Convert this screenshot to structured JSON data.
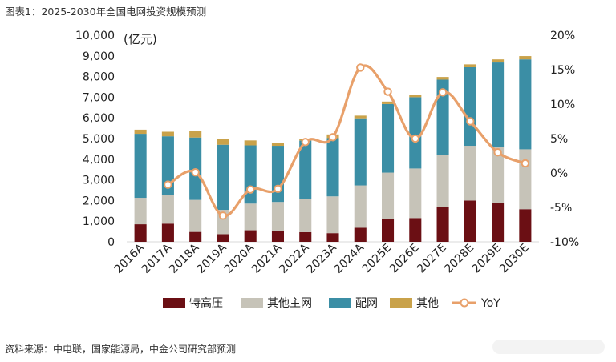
{
  "header": {
    "title": "图表1：2025-2030年全国电网投资规模预测"
  },
  "footer": {
    "source": "资料来源：中电联，国家能源局，中金公司研究部预测"
  },
  "chart_data": {
    "type": "bar",
    "stacked": true,
    "categories": [
      "2016A",
      "2017A",
      "2018A",
      "2019A",
      "2020A",
      "2021A",
      "2022A",
      "2023A",
      "2024A",
      "2025E",
      "2026E",
      "2027E",
      "2028E",
      "2029E",
      "2030E"
    ],
    "series": [
      {
        "name": "特高压",
        "color": "#6b0f14",
        "axis": "left",
        "values": [
          850,
          880,
          480,
          370,
          560,
          510,
          470,
          420,
          680,
          1100,
          1150,
          1700,
          2000,
          1880,
          1580
        ]
      },
      {
        "name": "其他主网",
        "color": "#c6c3b8",
        "axis": "left",
        "values": [
          1280,
          1380,
          1550,
          1180,
          1290,
          1420,
          1620,
          1780,
          2050,
          2250,
          2400,
          2500,
          2650,
          2700,
          2900
        ]
      },
      {
        "name": "配网",
        "color": "#3b8ea5",
        "axis": "left",
        "values": [
          3100,
          2850,
          3020,
          3150,
          2820,
          2720,
          2810,
          2820,
          3250,
          3320,
          3450,
          3650,
          3800,
          4100,
          4350
        ]
      },
      {
        "name": "其他",
        "color": "#c9a24a",
        "axis": "left",
        "values": [
          200,
          220,
          300,
          290,
          240,
          130,
          100,
          180,
          130,
          120,
          100,
          130,
          140,
          150,
          160
        ]
      },
      {
        "name": "YoY",
        "type": "line",
        "color": "#e8a06a",
        "axis": "right",
        "values": [
          null,
          -1.7,
          0.1,
          -6.2,
          -2.4,
          -2.3,
          4.5,
          5.2,
          15.3,
          11.8,
          5.0,
          11.7,
          7.5,
          3.0,
          1.4
        ]
      }
    ],
    "y_left": {
      "unit_label": "(亿元)",
      "min": 0,
      "max": 10000,
      "step": 1000,
      "tick_labels": [
        "0",
        "1,000",
        "2,000",
        "3,000",
        "4,000",
        "5,000",
        "6,000",
        "7,000",
        "8,000",
        "9,000",
        "10,000"
      ]
    },
    "y_right": {
      "min": -10,
      "max": 20,
      "step": 5,
      "tick_labels": [
        "-10%",
        "-5%",
        "0%",
        "5%",
        "10%",
        "15%",
        "20%"
      ]
    },
    "grid": false,
    "legend_position": "bottom"
  }
}
